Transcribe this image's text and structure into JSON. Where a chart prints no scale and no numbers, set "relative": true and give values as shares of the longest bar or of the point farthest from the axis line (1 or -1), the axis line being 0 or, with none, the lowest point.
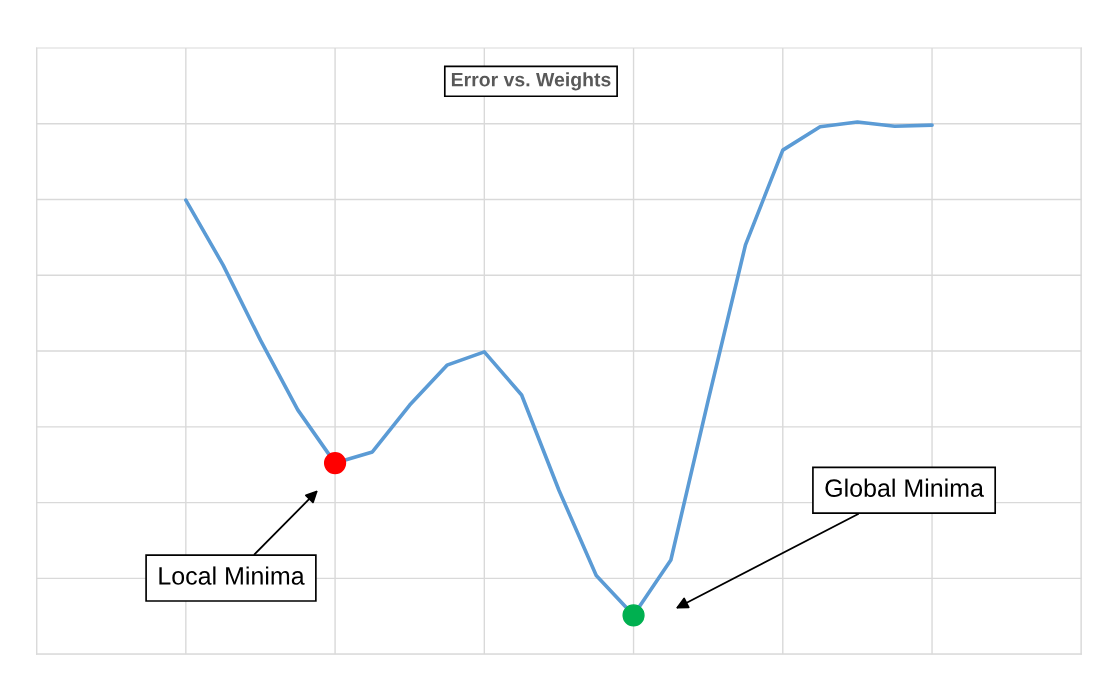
{
  "chart_data": {
    "type": "line",
    "title": "Error vs. Weights",
    "relative": true,
    "grid": true,
    "categories": [
      null,
      null,
      null,
      null,
      null,
      null,
      null,
      null,
      null,
      null,
      null,
      null,
      null,
      null,
      null,
      null,
      null,
      null,
      null,
      null,
      null
    ],
    "series": [
      {
        "color": "#5b9bd5",
        "colors": [
          null,
          null,
          null,
          null,
          "#ff0000",
          null,
          null,
          null,
          null,
          null,
          null,
          null,
          "#00b050",
          null,
          null,
          null,
          null,
          null,
          null,
          null,
          null
        ],
        "values": [
          0.853,
          0.731,
          0.59,
          0.459,
          0.359,
          0.38,
          0.468,
          0.543,
          0.568,
          0.487,
          0.308,
          0.148,
          0.073,
          0.177,
          0.477,
          0.769,
          0.947,
          0.991,
          1,
          0.992,
          0.994
        ]
      }
    ],
    "annotations": [
      "Local Minima",
      "Global Minima"
    ]
  }
}
